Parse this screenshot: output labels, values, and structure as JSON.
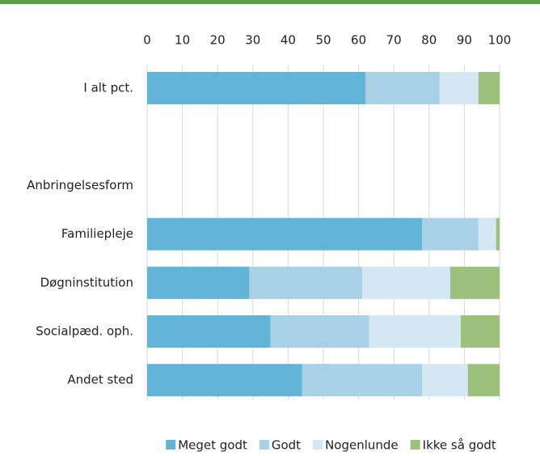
{
  "chart_data": {
    "type": "stacked-bar-horizontal",
    "categories": [
      "I alt pct.",
      null,
      "Anbringelsesform",
      "Familiepleje",
      "Døgninstitution",
      "Socialpæd. oph.",
      "Andet sted"
    ],
    "series": [
      {
        "name": "Meget godt",
        "color": "#62b5d6",
        "values": [
          62,
          null,
          null,
          78,
          29,
          35,
          44
        ]
      },
      {
        "name": "Godt",
        "color": "#a8d0e6",
        "values": [
          21,
          null,
          null,
          16,
          32,
          28,
          34
        ]
      },
      {
        "name": "Nogenlunde",
        "color": "#d3e8f2",
        "values": [
          11,
          null,
          null,
          5,
          25,
          26,
          13
        ]
      },
      {
        "name": "Ikke så godt",
        "color": "#9bc27a",
        "values": [
          6,
          null,
          null,
          1,
          14,
          11,
          9
        ]
      }
    ],
    "xlim": [
      0,
      100
    ],
    "xticks": [
      0,
      10,
      20,
      30,
      40,
      50,
      60,
      70,
      80,
      90,
      100
    ],
    "grid": true
  }
}
